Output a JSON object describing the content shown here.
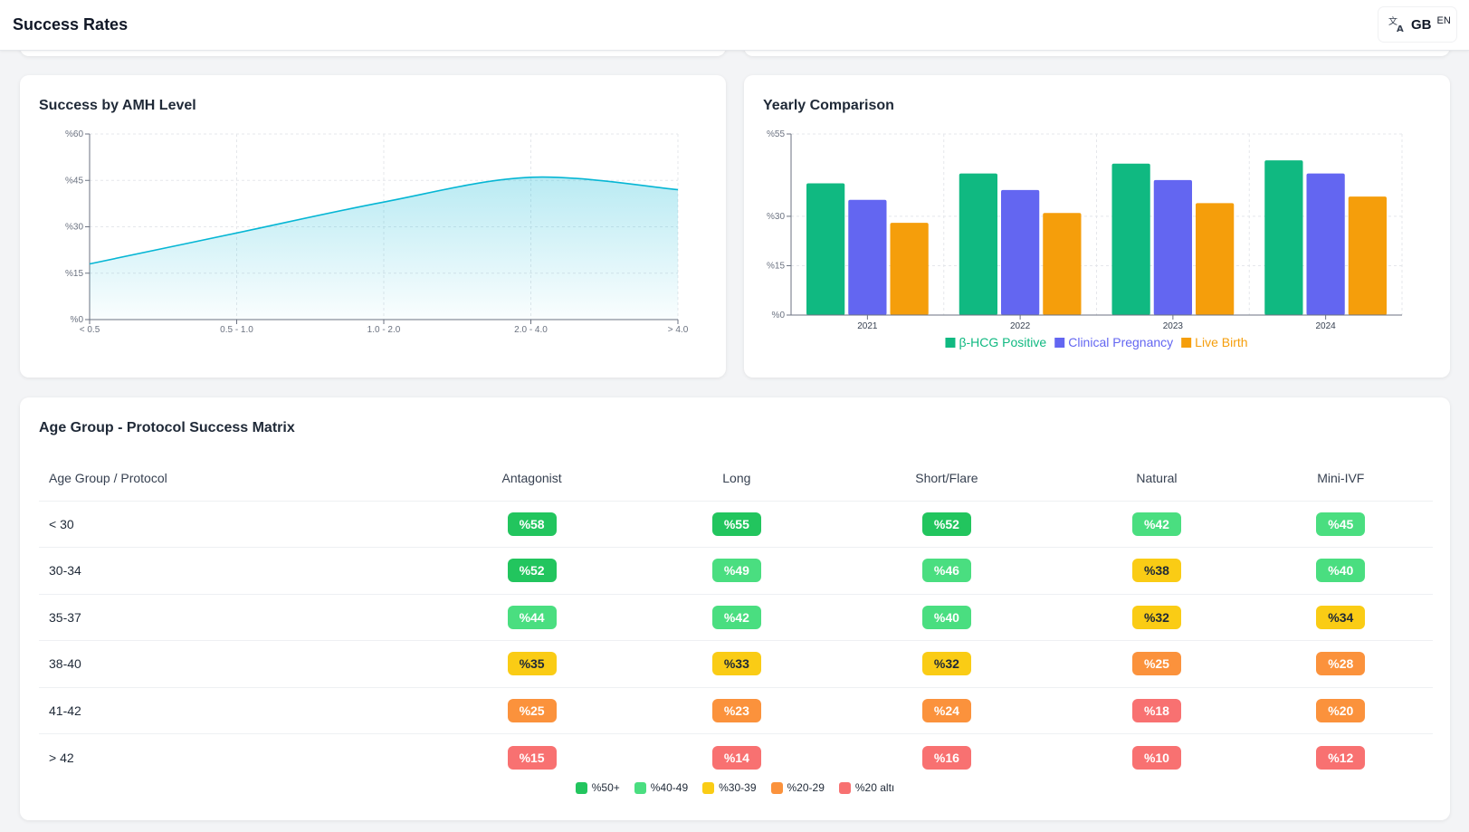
{
  "header": {
    "title": "Success Rates",
    "lang_flag": "GB",
    "lang_code": "EN",
    "lang_icon": "translate-icon"
  },
  "amh_card": {
    "title": "Success by AMH Level",
    "chart_data": {
      "type": "area",
      "categories": [
        "< 0.5",
        "0.5 - 1.0",
        "1.0 - 2.0",
        "2.0 - 4.0",
        "> 4.0"
      ],
      "series": [
        {
          "values": [
            18,
            28,
            38,
            46,
            42
          ]
        }
      ],
      "ylim": [
        0,
        60
      ],
      "yticks": [
        "%0",
        "%15",
        "%30",
        "%45",
        "%60"
      ],
      "ytick_values": [
        0,
        15,
        30,
        45,
        60
      ],
      "color": "#06b6d4",
      "grid": true
    }
  },
  "year_card": {
    "title": "Yearly Comparison",
    "chart_data": {
      "type": "bar",
      "categories": [
        "2021",
        "2022",
        "2023",
        "2024"
      ],
      "series": [
        {
          "name": "β-HCG Positive",
          "color": "#10b981",
          "values": [
            40,
            43,
            46,
            47
          ]
        },
        {
          "name": "Clinical Pregnancy",
          "color": "#6366f1",
          "values": [
            35,
            38,
            41,
            43
          ]
        },
        {
          "name": "Live Birth",
          "color": "#f59e0b",
          "values": [
            28,
            31,
            34,
            36
          ]
        }
      ],
      "ylim": [
        0,
        55
      ],
      "yticks": [
        "%0",
        "%15",
        "%30",
        "%55"
      ],
      "ytick_values": [
        0,
        15,
        30,
        55
      ],
      "legend": "bottom",
      "grid": true
    }
  },
  "matrix": {
    "title": "Age Group - Protocol Success Matrix",
    "corner": "Age Group / Protocol",
    "columns": [
      "Antagonist",
      "Long",
      "Short/Flare",
      "Natural",
      "Mini-IVF"
    ],
    "rows": [
      {
        "label": "< 30",
        "values": [
          "%58",
          "%55",
          "%52",
          "%42",
          "%45"
        ],
        "levels": [
          1,
          1,
          1,
          2,
          2
        ]
      },
      {
        "label": "30-34",
        "values": [
          "%52",
          "%49",
          "%46",
          "%38",
          "%40"
        ],
        "levels": [
          1,
          2,
          2,
          3,
          2
        ]
      },
      {
        "label": "35-37",
        "values": [
          "%44",
          "%42",
          "%40",
          "%32",
          "%34"
        ],
        "levels": [
          2,
          2,
          2,
          3,
          3
        ]
      },
      {
        "label": "38-40",
        "values": [
          "%35",
          "%33",
          "%32",
          "%25",
          "%28"
        ],
        "levels": [
          3,
          3,
          3,
          4,
          4
        ]
      },
      {
        "label": "41-42",
        "values": [
          "%25",
          "%23",
          "%24",
          "%18",
          "%20"
        ],
        "levels": [
          4,
          4,
          4,
          5,
          4
        ]
      },
      {
        "label": "> 42",
        "values": [
          "%15",
          "%14",
          "%16",
          "%10",
          "%12"
        ],
        "levels": [
          5,
          5,
          5,
          5,
          5
        ]
      }
    ],
    "legend": [
      {
        "label": "%50+",
        "color": "#22c55e"
      },
      {
        "label": "%40-49",
        "color": "#4ade80"
      },
      {
        "label": "%30-39",
        "color": "#facc15"
      },
      {
        "label": "%20-29",
        "color": "#fb923c"
      },
      {
        "label": "%20 altı",
        "color": "#f87171"
      }
    ]
  }
}
